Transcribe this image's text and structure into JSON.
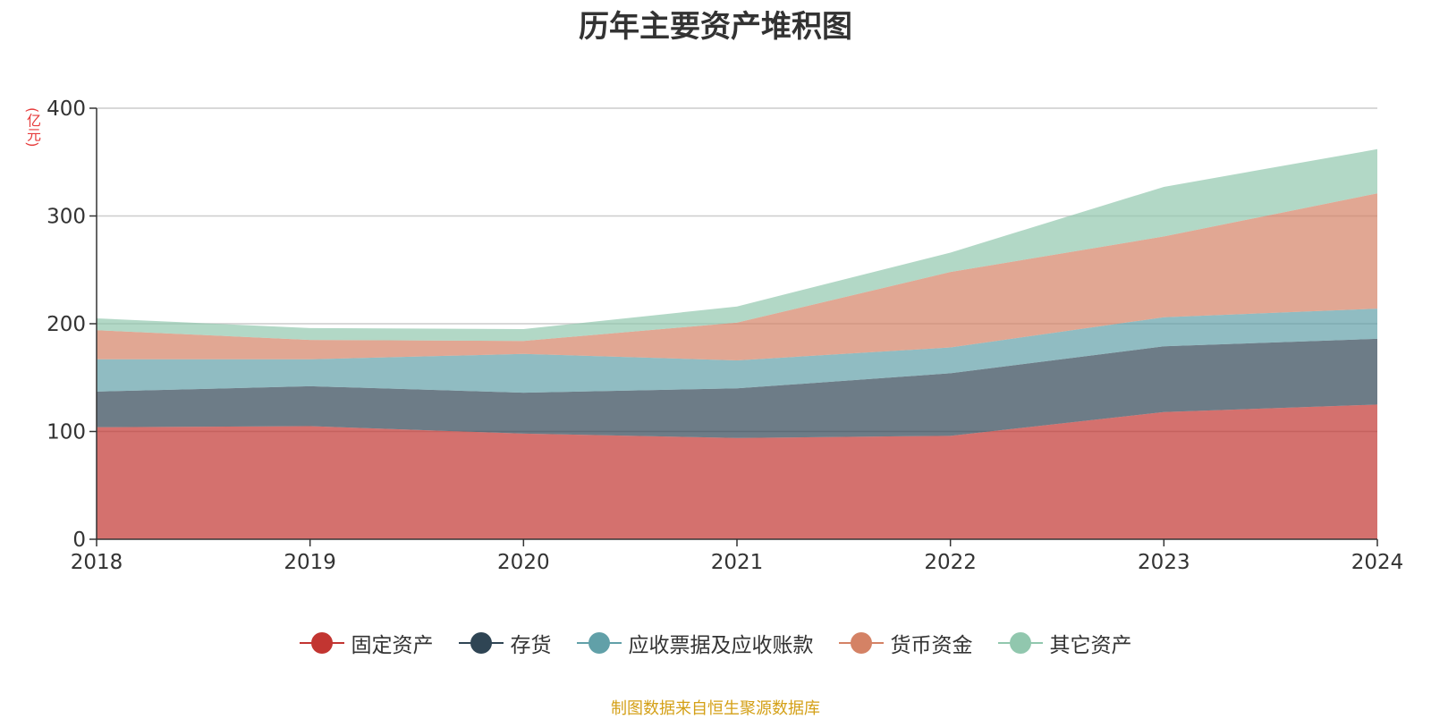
{
  "chart_data": {
    "type": "area",
    "stacked": true,
    "title": "历年主要资产堆积图",
    "yunit": "(亿元)",
    "categories": [
      "2018",
      "2019",
      "2020",
      "2021",
      "2022",
      "2023",
      "2024"
    ],
    "ylim": [
      0,
      400
    ],
    "yticks": [
      "0",
      "100",
      "200",
      "300",
      "400"
    ],
    "grid": true,
    "legend_position": "bottom",
    "series": [
      {
        "name": "固定资产",
        "color": "#c23531",
        "values": [
          104,
          105,
          98,
          94,
          96,
          118,
          125
        ]
      },
      {
        "name": "存货",
        "color": "#2f4554",
        "values": [
          33,
          37,
          38,
          46,
          58,
          61,
          61
        ]
      },
      {
        "name": "应收票据及应收账款",
        "color": "#61a0a8",
        "values": [
          30,
          25,
          36,
          26,
          24,
          27,
          28
        ]
      },
      {
        "name": "货币资金",
        "color": "#d48265",
        "values": [
          27,
          18,
          12,
          35,
          70,
          75,
          107
        ]
      },
      {
        "name": "其它资产",
        "color": "#91c7ae",
        "values": [
          11,
          11,
          11,
          15,
          18,
          46,
          41
        ]
      }
    ],
    "source": "制图数据来自恒生聚源数据库"
  }
}
